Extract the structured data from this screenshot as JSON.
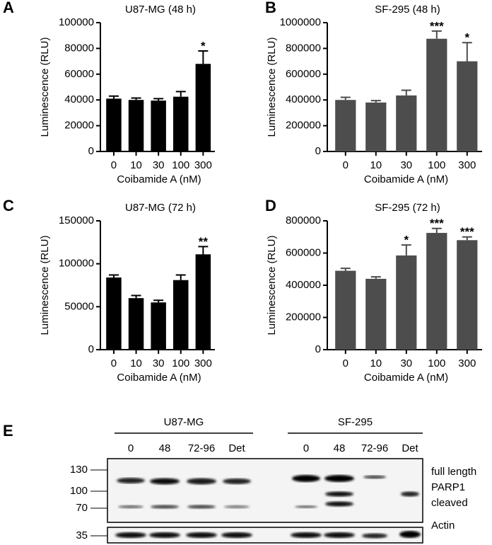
{
  "chart_data": [
    {
      "type": "bar",
      "panel": "A",
      "title": "U87-MG (48 h)",
      "x_label": "Coibamide A (nM)",
      "y_label": "Luminescence (RLU)",
      "categories": [
        "0",
        "10",
        "30",
        "100",
        "300"
      ],
      "values": [
        41000,
        40000,
        39500,
        42500,
        68000
      ],
      "errors": [
        2000,
        1500,
        1500,
        4000,
        10000
      ],
      "annotations": [
        null,
        null,
        null,
        null,
        "*"
      ],
      "color": "#000000",
      "ylim": [
        0,
        100000
      ],
      "yticks": [
        0,
        20000,
        40000,
        60000,
        80000,
        100000
      ]
    },
    {
      "type": "bar",
      "panel": "B",
      "title": "SF-295 (48 h)",
      "x_label": "Coibamide A (nM)",
      "y_label": "Luminescence (RLU)",
      "categories": [
        "0",
        "10",
        "30",
        "100",
        "300"
      ],
      "values": [
        400000,
        380000,
        435000,
        875000,
        700000
      ],
      "errors": [
        20000,
        15000,
        40000,
        60000,
        145000
      ],
      "annotations": [
        null,
        null,
        null,
        "***",
        "*"
      ],
      "color": "#4d4d4d",
      "ylim": [
        0,
        1000000
      ],
      "yticks": [
        0,
        200000,
        400000,
        600000,
        800000,
        1000000
      ]
    },
    {
      "type": "bar",
      "panel": "C",
      "title": "U87-MG (72 h)",
      "x_label": "Coibamide A (nM)",
      "y_label": "Luminescence (RLU)",
      "categories": [
        "0",
        "10",
        "30",
        "100",
        "300"
      ],
      "values": [
        84000,
        60000,
        55000,
        81000,
        111000
      ],
      "errors": [
        3000,
        3000,
        2500,
        6000,
        9000
      ],
      "annotations": [
        null,
        null,
        null,
        null,
        "**"
      ],
      "color": "#000000",
      "ylim": [
        0,
        150000
      ],
      "yticks": [
        0,
        50000,
        100000,
        150000
      ]
    },
    {
      "type": "bar",
      "panel": "D",
      "title": "SF-295 (72 h)",
      "x_label": "Coibamide A (nM)",
      "y_label": "Luminescence (RLU)",
      "categories": [
        "0",
        "10",
        "30",
        "100",
        "300"
      ],
      "values": [
        490000,
        440000,
        585000,
        725000,
        680000
      ],
      "errors": [
        15000,
        12000,
        65000,
        28000,
        20000
      ],
      "annotations": [
        null,
        null,
        "*",
        "***",
        "***"
      ],
      "color": "#4d4d4d",
      "ylim": [
        0,
        800000
      ],
      "yticks": [
        0,
        200000,
        400000,
        600000,
        800000
      ]
    }
  ],
  "blot": {
    "panel": "E",
    "groups": [
      {
        "label": "U87-MG",
        "lanes": [
          "0",
          "48",
          "72-96",
          "Det"
        ]
      },
      {
        "label": "SF-295",
        "lanes": [
          "0",
          "48",
          "72-96",
          "Det"
        ]
      }
    ],
    "markers": [
      "130",
      "100",
      "70"
    ],
    "labels": [
      "full length",
      "PARP1",
      "cleaved"
    ],
    "actin_marker": "35",
    "actin_label": "Actin"
  }
}
